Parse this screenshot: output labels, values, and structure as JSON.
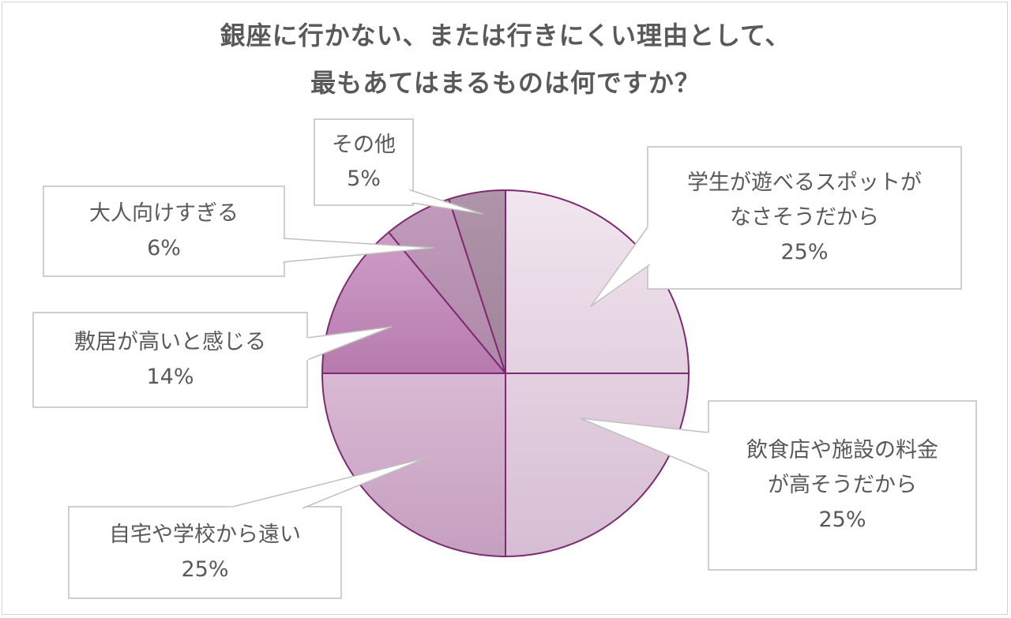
{
  "title": {
    "line1": "銀座に行かない、または行きにくい理由として、",
    "line2": "最もあてはまるものは何ですか？"
  },
  "chart_data": {
    "type": "pie",
    "start": "12 o'clock, clockwise",
    "slices": [
      {
        "label_lines": [
          "学生が遊べるスポットが",
          "なさそうだから"
        ],
        "value": 25,
        "value_label": "25%",
        "color": "#e8dbe6"
      },
      {
        "label_lines": [
          "飲食店や施設の料金",
          "が高そうだから"
        ],
        "value": 25,
        "value_label": "25%",
        "color": "#dbc3d8"
      },
      {
        "label_lines": [
          "自宅や学校から遠い"
        ],
        "value": 25,
        "value_label": "25%",
        "color": "#cda7c8"
      },
      {
        "label_lines": [
          "敷居が高いと感じる"
        ],
        "value": 14,
        "value_label": "14%",
        "color": "#c090bb"
      },
      {
        "label_lines": [
          "大人向けすぎる"
        ],
        "value": 6,
        "value_label": "6%",
        "color": "#b895b2"
      },
      {
        "label_lines": [
          "その他"
        ],
        "value": 5,
        "value_label": "5%",
        "color": "#a88ca3"
      }
    ],
    "edge_color": "#7e2a72",
    "legend": "none (callout labels)"
  }
}
